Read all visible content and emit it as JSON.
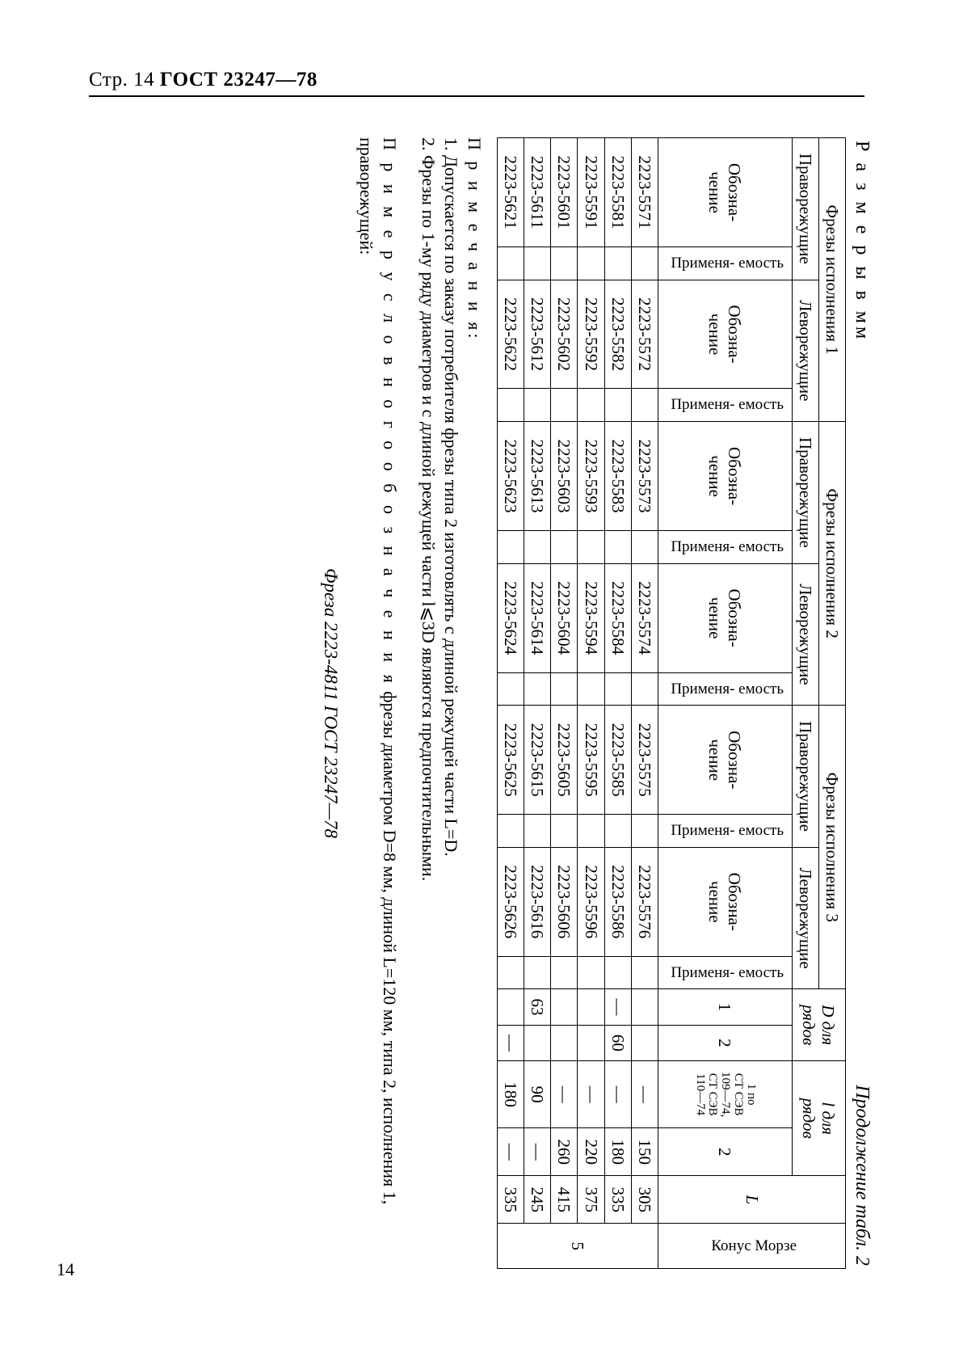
{
  "header": {
    "page_label": "Стр. 14",
    "standard": "ГОСТ 23247—78",
    "page_number": "14"
  },
  "captions": {
    "dimensions": "Р а з м е р ы   в   мм",
    "continuation": "Продолжение табл. 2"
  },
  "table": {
    "groups": {
      "g1": "Фрезы исполнения 1",
      "g2": "Фрезы исполнения 2",
      "g3": "Фрезы исполнения 3"
    },
    "dir": {
      "right": "Праворежущие",
      "left": "Леворежущие"
    },
    "cols": {
      "des": "Обозна-\nчение",
      "app": "Применя-\nемость",
      "D": "D для\nрядов",
      "l": "l для\nрядов",
      "l1_note": "1 по\nСТ СЭВ\n109—74,\nСТ СЭВ\n110—74",
      "two": "2",
      "one": "1",
      "L": "L",
      "morse": "Конус Морзе"
    },
    "rows": [
      {
        "e1r": "2223-5571",
        "e1l": "2223-5572",
        "e2r": "2223-5573",
        "e2l": "2223-5574",
        "e3r": "2223-5575",
        "e3l": "2223-5576",
        "d1": "",
        "d2": "",
        "l1": "—",
        "l2": "150",
        "L": "305"
      },
      {
        "e1r": "2223-5581",
        "e1l": "2223-5582",
        "e2r": "2223-5583",
        "e2l": "2223-5584",
        "e3r": "2223-5585",
        "e3l": "2223-5586",
        "d1": "—",
        "d2": "60",
        "l1": "—",
        "l2": "180",
        "L": "335"
      },
      {
        "e1r": "2223-5591",
        "e1l": "2223-5592",
        "e2r": "2223-5593",
        "e2l": "2223-5594",
        "e3r": "2223-5595",
        "e3l": "2223-5596",
        "d1": "",
        "d2": "",
        "l1": "—",
        "l2": "220",
        "L": "375"
      },
      {
        "e1r": "2223-5601",
        "e1l": "2223-5602",
        "e2r": "2223-5603",
        "e2l": "2223-5604",
        "e3r": "2223-5605",
        "e3l": "2223-5606",
        "d1": "",
        "d2": "",
        "l1": "—",
        "l2": "260",
        "L": "415"
      },
      {
        "e1r": "2223-5611",
        "e1l": "2223-5612",
        "e2r": "2223-5613",
        "e2l": "2223-5614",
        "e3r": "2223-5615",
        "e3l": "2223-5616",
        "d1": "63",
        "d2": "",
        "l1": "90",
        "l2": "—",
        "L": "245"
      },
      {
        "e1r": "2223-5621",
        "e1l": "2223-5622",
        "e2r": "2223-5623",
        "e2l": "2223-5624",
        "e3r": "2223-5625",
        "e3l": "2223-5626",
        "d1": "",
        "d2": "—",
        "l1": "180",
        "l2": "—",
        "L": "335"
      }
    ],
    "morse_span": "5"
  },
  "notes": {
    "head": "П р и м е ч а н и я:",
    "n1": "1. Допускается по заказу потребителя фрезы типа 2 изготовлять с длиной режущей части L=D.",
    "n2": "2. Фрезы по 1-му ряду диаметров и с длиной режущей части l⩽3D являются предпочтительными."
  },
  "example": {
    "lead": "П р и м е р   у с л о в н о г о   о б о з н а ч е н и я",
    "tail": " фрезы диаметром D=8 мм, длиной L=120 мм, типа 2, исполнения 1, праворежущей:"
  },
  "designation": "Фреза 2223-4811 ГОСТ 23247—78"
}
